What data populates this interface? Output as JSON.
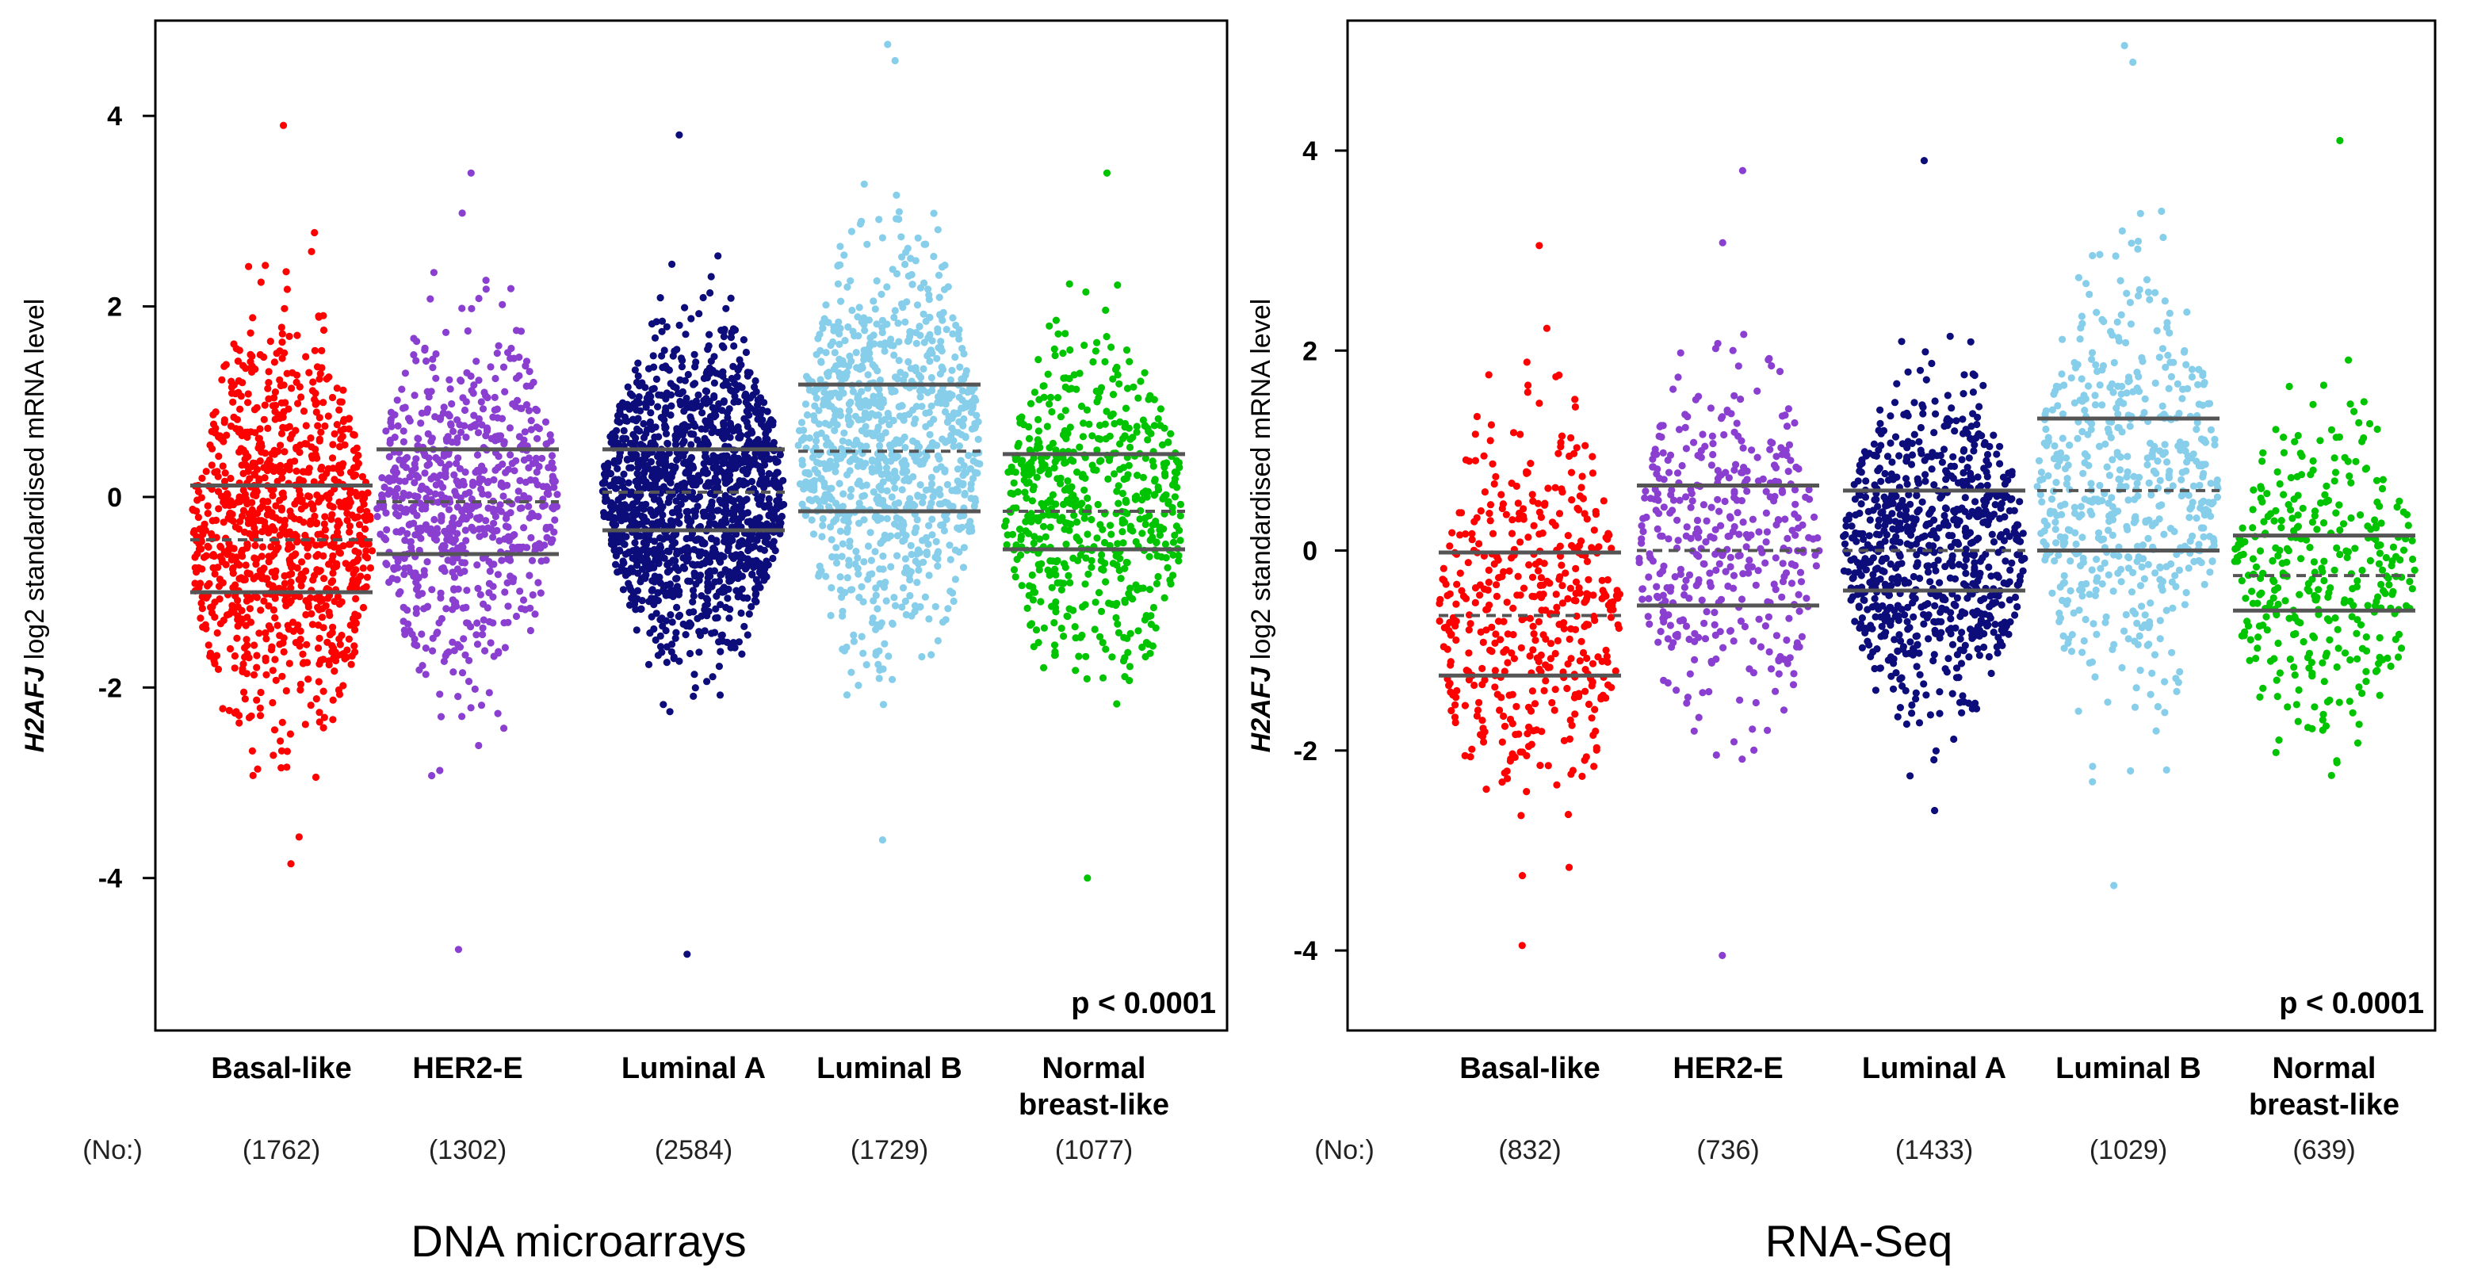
{
  "chart_data": [
    {
      "type": "scatter",
      "subtype": "beeswarm",
      "caption": "DNA microarrays",
      "gene": "H2AFJ",
      "ylabel_rest": " log2 standardised mRNA level",
      "yticks": [
        "4",
        "2",
        "0",
        "-2",
        "-4"
      ],
      "ylim": [
        -5.6,
        5.0
      ],
      "pvalue": "p < 0.0001",
      "count_label": "(No:)",
      "categories": [
        {
          "name": "Basal-like",
          "line1": "Basal-like",
          "line2": "",
          "count": "(1762)",
          "color": "#ff0000",
          "n": 1762,
          "q1": -1.0,
          "median": -0.45,
          "q3": 0.12,
          "min": -3.85,
          "max": 3.9,
          "sd": 0.95,
          "mean": -0.4
        },
        {
          "name": "HER2-E",
          "line1": "HER2-E",
          "line2": "",
          "count": "(1302)",
          "color": "#8a3fd1",
          "n": 1302,
          "q1": -0.6,
          "median": -0.05,
          "q3": 0.5,
          "min": -4.75,
          "max": 3.4,
          "sd": 0.85,
          "mean": -0.05
        },
        {
          "name": "Luminal A",
          "line1": "Luminal A",
          "line2": "",
          "count": "(2584)",
          "color": "#0c0c7a",
          "n": 2584,
          "q1": -0.35,
          "median": 0.05,
          "q3": 0.5,
          "min": -4.8,
          "max": 3.8,
          "sd": 0.75,
          "mean": 0.05
        },
        {
          "name": "Luminal B",
          "line1": "Luminal B",
          "line2": "",
          "count": "(1729)",
          "color": "#87ceeb",
          "n": 1729,
          "q1": -0.15,
          "median": 0.48,
          "q3": 1.18,
          "min": -3.6,
          "max": 4.75,
          "sd": 1.0,
          "mean": 0.5
        },
        {
          "name": "Normal breast-like",
          "line1": "Normal",
          "line2": "breast-like",
          "count": "(1077)",
          "color": "#00c400",
          "n": 1077,
          "q1": -0.55,
          "median": -0.15,
          "q3": 0.45,
          "min": -4.0,
          "max": 3.4,
          "sd": 0.8,
          "mean": -0.05
        }
      ]
    },
    {
      "type": "scatter",
      "subtype": "beeswarm",
      "caption": "RNA-Seq",
      "gene": "H2AFJ",
      "ylabel_rest": " log2 standardised mRNA level",
      "yticks": [
        "4",
        "2",
        "0",
        "-2",
        "-4"
      ],
      "ylim": [
        -4.8,
        5.3
      ],
      "pvalue": "p < 0.0001",
      "count_label": "(No:)",
      "categories": [
        {
          "name": "Basal-like",
          "line1": "Basal-like",
          "line2": "",
          "count": "(832)",
          "color": "#ff0000",
          "n": 832,
          "q1": -1.25,
          "median": -0.65,
          "q3": -0.02,
          "min": -3.95,
          "max": 3.05,
          "sd": 0.95,
          "mean": -0.6
        },
        {
          "name": "HER2-E",
          "line1": "HER2-E",
          "line2": "",
          "count": "(736)",
          "color": "#8a3fd1",
          "n": 736,
          "q1": -0.55,
          "median": 0.0,
          "q3": 0.65,
          "min": -4.05,
          "max": 3.8,
          "sd": 0.85,
          "mean": 0.05
        },
        {
          "name": "Luminal A",
          "line1": "Luminal A",
          "line2": "",
          "count": "(1433)",
          "color": "#0c0c7a",
          "n": 1433,
          "q1": -0.4,
          "median": 0.0,
          "q3": 0.6,
          "min": -2.6,
          "max": 3.9,
          "sd": 0.75,
          "mean": 0.05
        },
        {
          "name": "Luminal B",
          "line1": "Luminal B",
          "line2": "",
          "count": "(1029)",
          "color": "#87ceeb",
          "n": 1029,
          "q1": 0.0,
          "median": 0.6,
          "q3": 1.32,
          "min": -3.35,
          "max": 5.05,
          "sd": 1.0,
          "mean": 0.6
        },
        {
          "name": "Normal breast-like",
          "line1": "Normal",
          "line2": "breast-like",
          "count": "(639)",
          "color": "#00c400",
          "n": 639,
          "q1": -0.6,
          "median": -0.25,
          "q3": 0.15,
          "min": -2.25,
          "max": 4.1,
          "sd": 0.75,
          "mean": -0.2
        }
      ]
    }
  ]
}
